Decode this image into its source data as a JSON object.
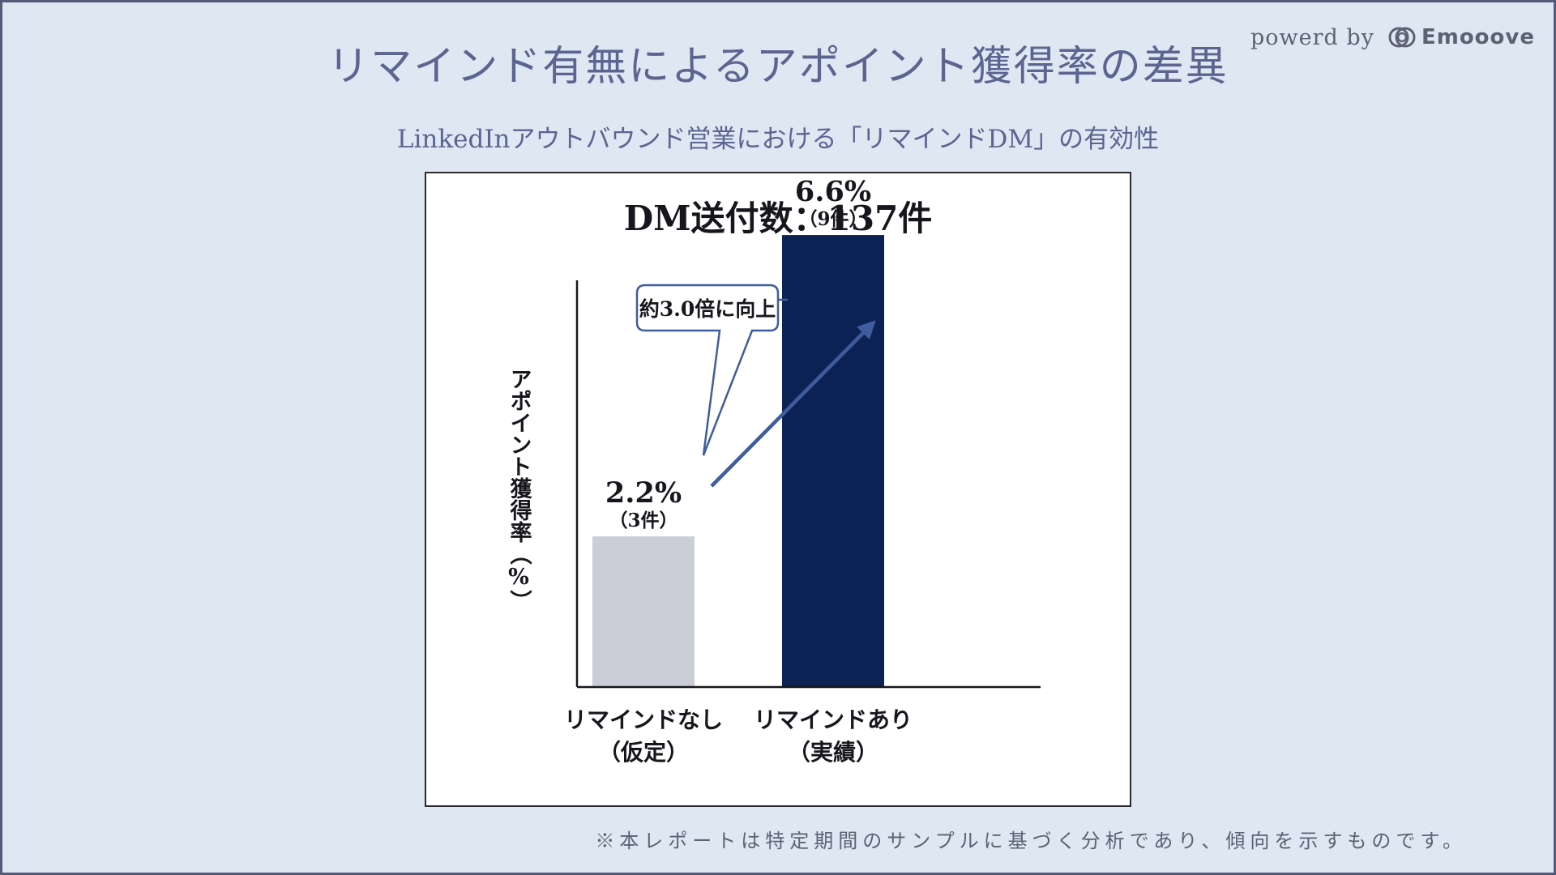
{
  "header": {
    "title": "リマインド有無によるアポイント獲得率の差異",
    "subtitle": "LinkedInアウトバウンド営業における「リマインドDM」の有効性"
  },
  "brand": {
    "prefix": "powerd by",
    "name": "Emooove",
    "logo_icon": "emooove-logo-icon"
  },
  "chart_data": {
    "type": "bar",
    "title": "DM送付数：137件",
    "ylabel": "アポイント獲得率（%）",
    "xlabel": "",
    "ylim": [
      0,
      7.5
    ],
    "grid": false,
    "categories": [
      {
        "line1": "リマインドなし",
        "line2": "（仮定）"
      },
      {
        "line1": "リマインドあり",
        "line2": "（実績）"
      }
    ],
    "values": [
      2.2,
      6.6
    ],
    "value_labels": [
      "2.2%",
      "6.6%"
    ],
    "count_labels": [
      "（3件）",
      "（9件）"
    ],
    "bar_colors": [
      "#cbced9",
      "#0c2255"
    ],
    "annotation": {
      "text": "約3.0倍に向上",
      "arrow_color": "#3f5d9c",
      "from": "リマインドなし",
      "to": "リマインドあり"
    }
  },
  "footnote": "※本レポートは特定期間のサンプルに基づく分析であり、傾向を示すものです。",
  "colors": {
    "background": "#dfe7f3",
    "title_text": "#5b6590",
    "accent_arrow": "#3f5d9c",
    "bar_highlight": "#0c2255",
    "bar_muted": "#cbced9"
  }
}
